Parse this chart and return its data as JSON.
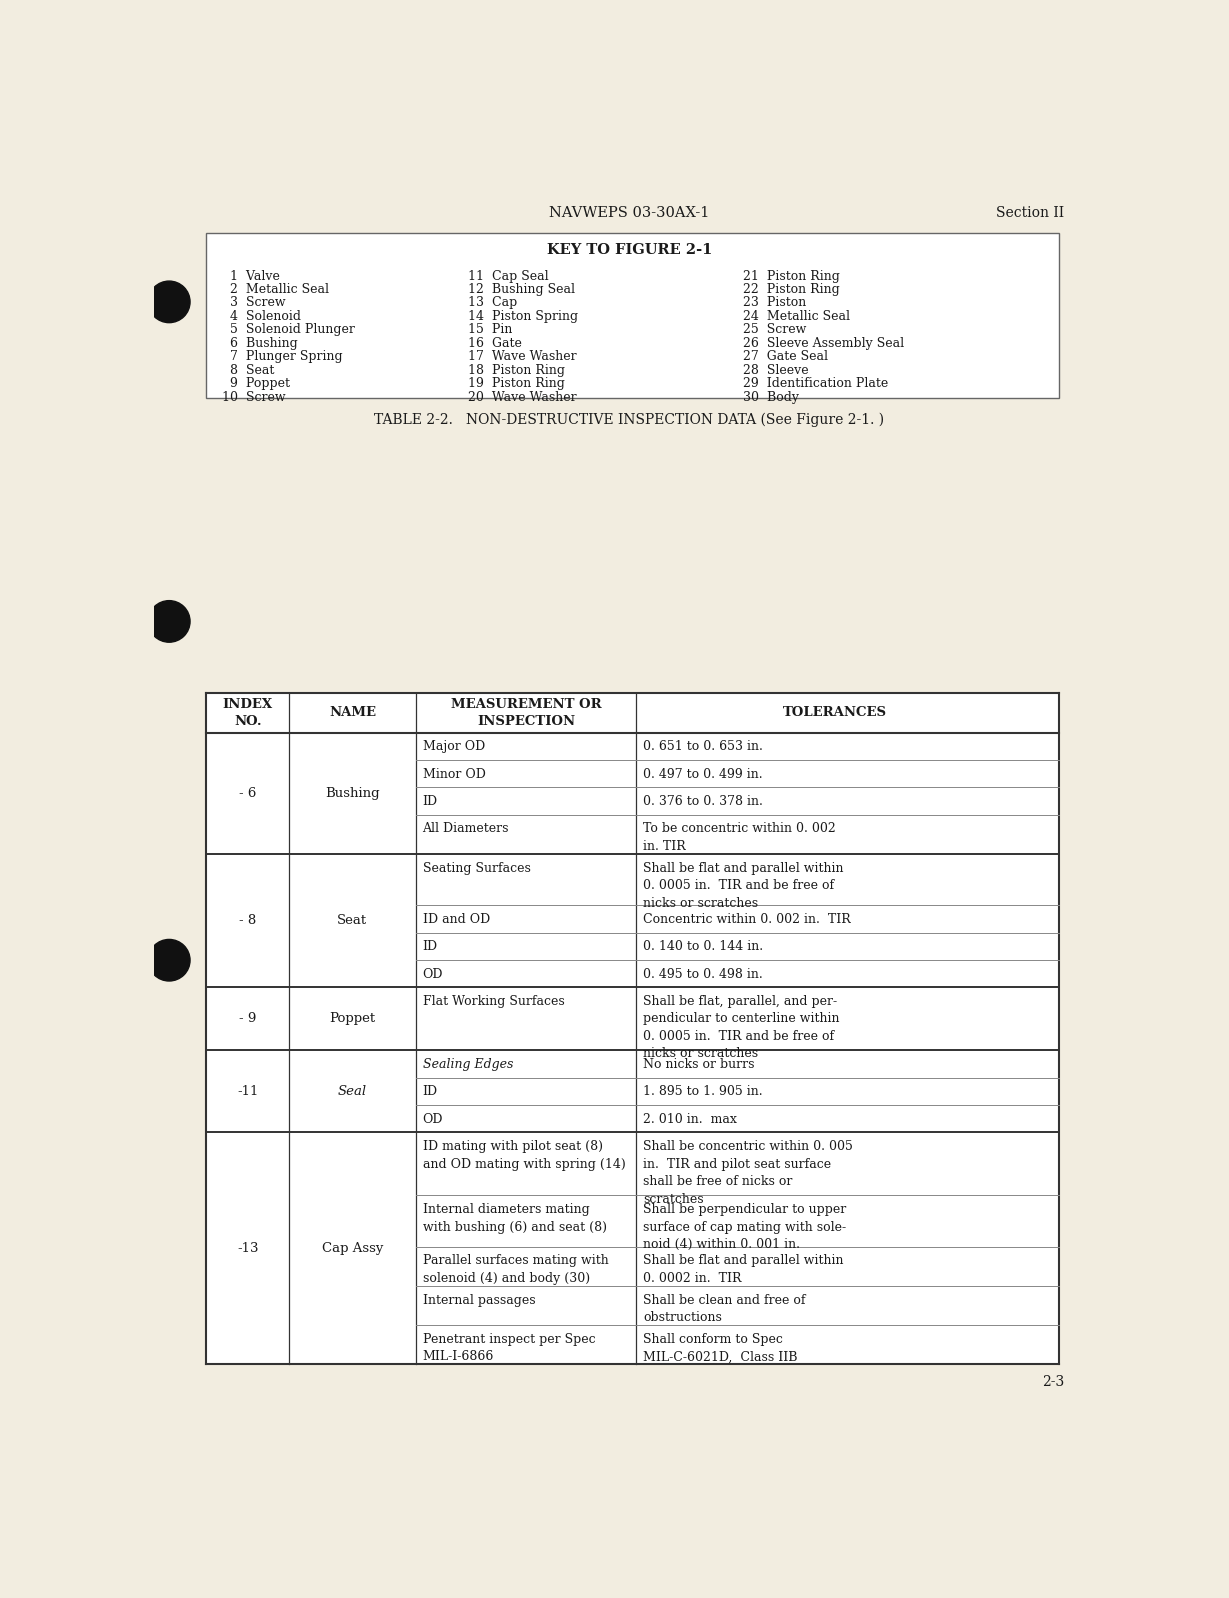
{
  "bg_color": "#f2ede0",
  "text_color": "#1a1a1a",
  "header_text": "NAVWEPS 03-30AX-1",
  "section_text": "Section II",
  "page_num": "2-3",
  "key_title": "KEY TO FIGURE 2-1",
  "key_items_col1": [
    "  1  Valve",
    "  2  Metallic Seal",
    "  3  Screw",
    "  4  Solenoid",
    "  5  Solenoid Plunger",
    "  6  Bushing",
    "  7  Plunger Spring",
    "  8  Seat",
    "  9  Poppet",
    "10  Screw"
  ],
  "key_items_col2": [
    "11  Cap Seal",
    "12  Bushing Seal",
    "13  Cap",
    "14  Piston Spring",
    "15  Pin",
    "16  Gate",
    "17  Wave Washer",
    "18  Piston Ring",
    "19  Piston Ring",
    "20  Wave Washer"
  ],
  "key_items_col3": [
    "21  Piston Ring",
    "22  Piston Ring",
    "23  Piston",
    "24  Metallic Seal",
    "25  Screw",
    "26  Sleeve Assembly Seal",
    "27  Gate Seal",
    "28  Sleeve",
    "29  Identification Plate",
    "30  Body"
  ],
  "table_title": "TABLE 2-2.   NON-DESTRUCTIVE INSPECTION DATA (See Figure 2-1. )",
  "col_headers": [
    "INDEX\nNO.",
    "NAME",
    "MEASUREMENT OR\nINSPECTION",
    "TOLERANCES"
  ],
  "table_rows": [
    {
      "index": "- 6",
      "name": "Bushing",
      "name_italic": false,
      "sub_rows": [
        {
          "meas": "Major OD",
          "meas_italic": false,
          "tol": "0. 651 to 0. 653 in."
        },
        {
          "meas": "Minor OD",
          "meas_italic": false,
          "tol": "0. 497 to 0. 499 in."
        },
        {
          "meas": "ID",
          "meas_italic": false,
          "tol": "0. 376 to 0. 378 in."
        },
        {
          "meas": "All Diameters",
          "meas_italic": false,
          "tol": "To be concentric within 0. 002\nin. TIR"
        }
      ]
    },
    {
      "index": "- 8",
      "name": "Seat",
      "name_italic": false,
      "sub_rows": [
        {
          "meas": "Seating Surfaces",
          "meas_italic": false,
          "tol": "Shall be flat and parallel within\n0. 0005 in.  TIR and be free of\nnicks or scratches"
        },
        {
          "meas": "ID and OD",
          "meas_italic": false,
          "tol": "Concentric within 0. 002 in.  TIR"
        },
        {
          "meas": "ID",
          "meas_italic": false,
          "tol": "0. 140 to 0. 144 in."
        },
        {
          "meas": "OD",
          "meas_italic": false,
          "tol": "0. 495 to 0. 498 in."
        }
      ]
    },
    {
      "index": "- 9",
      "name": "Poppet",
      "name_italic": false,
      "sub_rows": [
        {
          "meas": "Flat Working Surfaces",
          "meas_italic": false,
          "tol": "Shall be flat, parallel, and per-\npendicular to centerline within\n0. 0005 in.  TIR and be free of\nnicks or scratches"
        }
      ]
    },
    {
      "index": "-11",
      "name": "Seal",
      "name_italic": true,
      "sub_rows": [
        {
          "meas": "Sealing Edges",
          "meas_italic": true,
          "tol": "No nicks or burrs"
        },
        {
          "meas": "ID",
          "meas_italic": false,
          "tol": "1. 895 to 1. 905 in."
        },
        {
          "meas": "OD",
          "meas_italic": false,
          "tol": "2. 010 in.  max"
        }
      ]
    },
    {
      "index": "-13",
      "name": "Cap Assy",
      "name_italic": false,
      "sub_rows": [
        {
          "meas": "ID mating with pilot seat (8)\nand OD mating with spring (14)",
          "meas_italic": false,
          "tol": "Shall be concentric within 0. 005\nin.  TIR and pilot seat surface\nshall be free of nicks or\nscratches"
        },
        {
          "meas": "Internal diameters mating\nwith bushing (6) and seat (8)",
          "meas_italic": false,
          "tol": "Shall be perpendicular to upper\nsurface of cap mating with sole-\nnoid (4) within 0. 001 in."
        },
        {
          "meas": "Parallel surfaces mating with\nsolenoid (4) and body (30)",
          "meas_italic": false,
          "tol": "Shall be flat and parallel within\n0. 0002 in.  TIR"
        },
        {
          "meas": "Internal passages",
          "meas_italic": false,
          "tol": "Shall be clean and free of\nobstructions"
        },
        {
          "meas": "Penetrant inspect per Spec\nMIL-I-6866",
          "meas_italic": false,
          "tol": "Shall conform to Spec\nMIL-C-6021D,  Class IIB"
        }
      ]
    }
  ]
}
